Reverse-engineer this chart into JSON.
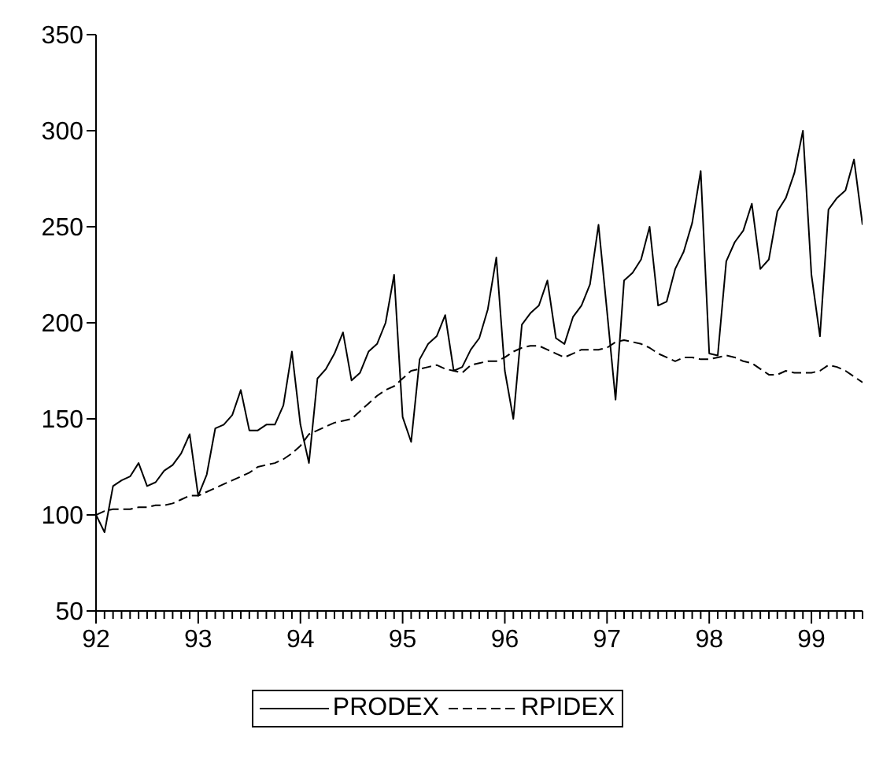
{
  "chart_data": {
    "type": "line",
    "legend": "bottom",
    "grid": false,
    "x": [
      "1992-01",
      "1992-02",
      "1992-03",
      "1992-04",
      "1992-05",
      "1992-06",
      "1992-07",
      "1992-08",
      "1992-09",
      "1992-10",
      "1992-11",
      "1992-12",
      "1993-01",
      "1993-02",
      "1993-03",
      "1993-04",
      "1993-05",
      "1993-06",
      "1993-07",
      "1993-08",
      "1993-09",
      "1993-10",
      "1993-11",
      "1993-12",
      "1994-01",
      "1994-02",
      "1994-03",
      "1994-04",
      "1994-05",
      "1994-06",
      "1994-07",
      "1994-08",
      "1994-09",
      "1994-10",
      "1994-11",
      "1994-12",
      "1995-01",
      "1995-02",
      "1995-03",
      "1995-04",
      "1995-05",
      "1995-06",
      "1995-07",
      "1995-08",
      "1995-09",
      "1995-10",
      "1995-11",
      "1995-12",
      "1996-01",
      "1996-02",
      "1996-03",
      "1996-04",
      "1996-05",
      "1996-06",
      "1996-07",
      "1996-08",
      "1996-09",
      "1996-10",
      "1996-11",
      "1996-12",
      "1997-01",
      "1997-02",
      "1997-03",
      "1997-04",
      "1997-05",
      "1997-06",
      "1997-07",
      "1997-08",
      "1997-09",
      "1997-10",
      "1997-11",
      "1997-12",
      "1998-01",
      "1998-02",
      "1998-03",
      "1998-04",
      "1998-05",
      "1998-06",
      "1998-07",
      "1998-08",
      "1998-09",
      "1998-10",
      "1998-11",
      "1998-12",
      "1999-01",
      "1999-02",
      "1999-03",
      "1999-04",
      "1999-05",
      "1999-06",
      "1999-07"
    ],
    "series": [
      {
        "name": "PRODEX",
        "color": "#000000",
        "line_style": "solid",
        "values": [
          100,
          91,
          115,
          118,
          120,
          127,
          115,
          117,
          123,
          126,
          132,
          142,
          110,
          121,
          145,
          147,
          152,
          165,
          144,
          144,
          147,
          147,
          157,
          185,
          147,
          127,
          171,
          176,
          184,
          195,
          170,
          174,
          185,
          189,
          200,
          225,
          151,
          138,
          181,
          189,
          193,
          204,
          175,
          177,
          186,
          192,
          207,
          234,
          175,
          150,
          199,
          205,
          209,
          222,
          192,
          189,
          203,
          209,
          220,
          251,
          206,
          160,
          222,
          226,
          233,
          250,
          209,
          211,
          228,
          237,
          252,
          279,
          184,
          183,
          232,
          242,
          248,
          262,
          228,
          233,
          258,
          265,
          278,
          300,
          225,
          193,
          259,
          265,
          269,
          285,
          251
        ]
      },
      {
        "name": "RPIDEX",
        "color": "#000000",
        "line_style": "dashed",
        "values": [
          100,
          102,
          103,
          103,
          103,
          104,
          104,
          105,
          105,
          106,
          108,
          110,
          110,
          112,
          114,
          116,
          118,
          120,
          122,
          125,
          126,
          127,
          129,
          132,
          136,
          142,
          144,
          146,
          148,
          149,
          150,
          154,
          158,
          162,
          165,
          167,
          171,
          175,
          176,
          177,
          178,
          176,
          175,
          174,
          178,
          179,
          180,
          180,
          182,
          185,
          187,
          188,
          188,
          186,
          184,
          182,
          184,
          186,
          186,
          186,
          187,
          190,
          191,
          190,
          189,
          187,
          184,
          182,
          180,
          182,
          182,
          181,
          181,
          182,
          183,
          182,
          180,
          179,
          176,
          173,
          173,
          175,
          174,
          174,
          174,
          175,
          178,
          177,
          175,
          172,
          169
        ]
      }
    ],
    "xlim": [
      "1992-01",
      "1999-07"
    ],
    "xticks": [
      {
        "value": "1992-01",
        "label": "92"
      },
      {
        "value": "1992-02",
        "label": null
      },
      {
        "value": "1992-03",
        "label": null
      },
      {
        "value": "1992-04",
        "label": null
      },
      {
        "value": "1992-05",
        "label": null
      },
      {
        "value": "1992-06",
        "label": null
      },
      {
        "value": "1992-07",
        "label": null
      },
      {
        "value": "1992-08",
        "label": null
      },
      {
        "value": "1992-09",
        "label": null
      },
      {
        "value": "1992-10",
        "label": null
      },
      {
        "value": "1992-11",
        "label": null
      },
      {
        "value": "1992-12",
        "label": null
      },
      {
        "value": "1993-01",
        "label": "93"
      },
      {
        "value": "1993-02",
        "label": null
      },
      {
        "value": "1993-03",
        "label": null
      },
      {
        "value": "1993-04",
        "label": null
      },
      {
        "value": "1993-05",
        "label": null
      },
      {
        "value": "1993-06",
        "label": null
      },
      {
        "value": "1993-07",
        "label": null
      },
      {
        "value": "1993-08",
        "label": null
      },
      {
        "value": "1993-09",
        "label": null
      },
      {
        "value": "1993-10",
        "label": null
      },
      {
        "value": "1993-11",
        "label": null
      },
      {
        "value": "1993-12",
        "label": null
      },
      {
        "value": "1994-01",
        "label": "94"
      },
      {
        "value": "1994-02",
        "label": null
      },
      {
        "value": "1994-03",
        "label": null
      },
      {
        "value": "1994-04",
        "label": null
      },
      {
        "value": "1994-05",
        "label": null
      },
      {
        "value": "1994-06",
        "label": null
      },
      {
        "value": "1994-07",
        "label": null
      },
      {
        "value": "1994-08",
        "label": null
      },
      {
        "value": "1994-09",
        "label": null
      },
      {
        "value": "1994-10",
        "label": null
      },
      {
        "value": "1994-11",
        "label": null
      },
      {
        "value": "1994-12",
        "label": null
      },
      {
        "value": "1995-01",
        "label": "95"
      },
      {
        "value": "1995-02",
        "label": null
      },
      {
        "value": "1995-03",
        "label": null
      },
      {
        "value": "1995-04",
        "label": null
      },
      {
        "value": "1995-05",
        "label": null
      },
      {
        "value": "1995-06",
        "label": null
      },
      {
        "value": "1995-07",
        "label": null
      },
      {
        "value": "1995-08",
        "label": null
      },
      {
        "value": "1995-09",
        "label": null
      },
      {
        "value": "1995-10",
        "label": null
      },
      {
        "value": "1995-11",
        "label": null
      },
      {
        "value": "1995-12",
        "label": null
      },
      {
        "value": "1996-01",
        "label": "96"
      },
      {
        "value": "1996-02",
        "label": null
      },
      {
        "value": "1996-03",
        "label": null
      },
      {
        "value": "1996-04",
        "label": null
      },
      {
        "value": "1996-05",
        "label": null
      },
      {
        "value": "1996-06",
        "label": null
      },
      {
        "value": "1996-07",
        "label": null
      },
      {
        "value": "1996-08",
        "label": null
      },
      {
        "value": "1996-09",
        "label": null
      },
      {
        "value": "1996-10",
        "label": null
      },
      {
        "value": "1996-11",
        "label": null
      },
      {
        "value": "1996-12",
        "label": null
      },
      {
        "value": "1997-01",
        "label": "97"
      },
      {
        "value": "1997-02",
        "label": null
      },
      {
        "value": "1997-03",
        "label": null
      },
      {
        "value": "1997-04",
        "label": null
      },
      {
        "value": "1997-05",
        "label": null
      },
      {
        "value": "1997-06",
        "label": null
      },
      {
        "value": "1997-07",
        "label": null
      },
      {
        "value": "1997-08",
        "label": null
      },
      {
        "value": "1997-09",
        "label": null
      },
      {
        "value": "1997-10",
        "label": null
      },
      {
        "value": "1997-11",
        "label": null
      },
      {
        "value": "1997-12",
        "label": null
      },
      {
        "value": "1998-01",
        "label": "98"
      },
      {
        "value": "1998-02",
        "label": null
      },
      {
        "value": "1998-03",
        "label": null
      },
      {
        "value": "1998-04",
        "label": null
      },
      {
        "value": "1998-05",
        "label": null
      },
      {
        "value": "1998-06",
        "label": null
      },
      {
        "value": "1998-07",
        "label": null
      },
      {
        "value": "1998-08",
        "label": null
      },
      {
        "value": "1998-09",
        "label": null
      },
      {
        "value": "1998-10",
        "label": null
      },
      {
        "value": "1998-11",
        "label": null
      },
      {
        "value": "1998-12",
        "label": null
      },
      {
        "value": "1999-01",
        "label": "99"
      },
      {
        "value": "1999-02",
        "label": null
      },
      {
        "value": "1999-03",
        "label": null
      },
      {
        "value": "1999-04",
        "label": null
      },
      {
        "value": "1999-05",
        "label": null
      },
      {
        "value": "1999-06",
        "label": null
      },
      {
        "value": "1999-07",
        "label": null
      }
    ],
    "ylim": [
      50,
      350
    ],
    "yticks": [
      50,
      100,
      150,
      200,
      250,
      300,
      350
    ]
  }
}
